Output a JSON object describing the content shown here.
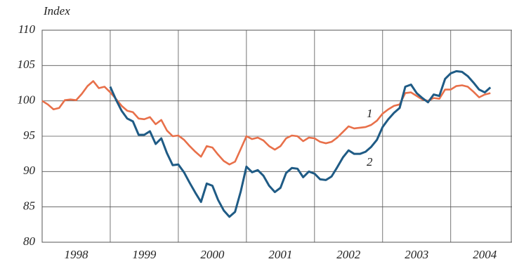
{
  "chart_data": {
    "type": "line",
    "y_label": "Index",
    "xlim": [
      1998,
      2004.9
    ],
    "ylim": [
      80,
      110
    ],
    "yticks": [
      80,
      85,
      90,
      95,
      100,
      105,
      110
    ],
    "xticks": [
      {
        "value": 1998.5,
        "label": "1998"
      },
      {
        "value": 1999.5,
        "label": "1999"
      },
      {
        "value": 2000.5,
        "label": "2000"
      },
      {
        "value": 2001.5,
        "label": "2001"
      },
      {
        "value": 2002.5,
        "label": "2002"
      },
      {
        "value": 2003.5,
        "label": "2003"
      },
      {
        "value": 2004.5,
        "label": "2004"
      }
    ],
    "xgrid": [
      1999,
      2000,
      2001,
      2002,
      2003,
      2004
    ],
    "grid": true,
    "series": [
      {
        "name": "1",
        "color": "#e8704a",
        "x": [
          1998,
          1998.083,
          1998.167,
          1998.25,
          1998.333,
          1998.417,
          1998.5,
          1998.583,
          1998.667,
          1998.75,
          1998.833,
          1998.917,
          1999,
          1999.083,
          1999.167,
          1999.25,
          1999.333,
          1999.417,
          1999.5,
          1999.583,
          1999.667,
          1999.75,
          1999.833,
          1999.917,
          2000,
          2000.083,
          2000.167,
          2000.25,
          2000.333,
          2000.417,
          2000.5,
          2000.583,
          2000.667,
          2000.75,
          2000.833,
          2000.917,
          2001,
          2001.083,
          2001.167,
          2001.25,
          2001.333,
          2001.417,
          2001.5,
          2001.583,
          2001.667,
          2001.75,
          2001.833,
          2001.917,
          2002,
          2002.083,
          2002.167,
          2002.25,
          2002.333,
          2002.417,
          2002.5,
          2002.583,
          2002.667,
          2002.75,
          2002.833,
          2002.917,
          2003,
          2003.083,
          2003.167,
          2003.25,
          2003.333,
          2003.417,
          2003.5,
          2003.583,
          2003.667,
          2003.75,
          2003.833,
          2003.917,
          2004,
          2004.083,
          2004.167,
          2004.25,
          2004.333,
          2004.417,
          2004.5,
          2004.583
        ],
        "values": [
          100,
          99.5,
          98.8,
          99,
          100.1,
          100.2,
          100.1,
          101,
          102.1,
          102.8,
          101.8,
          102,
          101.2,
          100.3,
          99.3,
          98.6,
          98.4,
          97.5,
          97.4,
          97.7,
          96.7,
          97.3,
          95.8,
          95,
          95.1,
          94.5,
          93.6,
          92.8,
          92.1,
          93.6,
          93.4,
          92.4,
          91.5,
          91,
          91.4,
          93.2,
          95,
          94.6,
          94.8,
          94.4,
          93.6,
          93.1,
          93.6,
          94.7,
          95.1,
          95,
          94.3,
          94.8,
          94.7,
          94.2,
          94,
          94.2,
          94.8,
          95.6,
          96.4,
          96.1,
          96.2,
          96.3,
          96.6,
          97.2,
          98.2,
          98.8,
          99.3,
          99.5,
          101.1,
          101.2,
          100.7,
          100.2,
          100,
          100.4,
          100.3,
          101.6,
          101.6,
          102.1,
          102.2,
          102,
          101.3,
          100.5,
          100.9,
          101.1
        ]
      },
      {
        "name": "2",
        "color": "#1f5b85",
        "x": [
          1999,
          1999.083,
          1999.167,
          1999.25,
          1999.333,
          1999.417,
          1999.5,
          1999.583,
          1999.667,
          1999.75,
          1999.833,
          1999.917,
          2000,
          2000.083,
          2000.167,
          2000.25,
          2000.333,
          2000.417,
          2000.5,
          2000.583,
          2000.667,
          2000.75,
          2000.833,
          2000.917,
          2001,
          2001.083,
          2001.167,
          2001.25,
          2001.333,
          2001.417,
          2001.5,
          2001.583,
          2001.667,
          2001.75,
          2001.833,
          2001.917,
          2002,
          2002.083,
          2002.167,
          2002.25,
          2002.333,
          2002.417,
          2002.5,
          2002.583,
          2002.667,
          2002.75,
          2002.833,
          2002.917,
          2003,
          2003.083,
          2003.167,
          2003.25,
          2003.333,
          2003.417,
          2003.5,
          2003.583,
          2003.667,
          2003.75,
          2003.833,
          2003.917,
          2004,
          2004.083,
          2004.167,
          2004.25,
          2004.333,
          2004.417,
          2004.5,
          2004.583
        ],
        "values": [
          102,
          100.2,
          98.6,
          97.5,
          97.1,
          95.2,
          95.2,
          95.7,
          93.9,
          94.7,
          92.6,
          90.9,
          91,
          89.9,
          88.4,
          87,
          85.7,
          88.3,
          88,
          86,
          84.5,
          83.6,
          84.3,
          87.2,
          90.7,
          89.9,
          90.2,
          89.4,
          88,
          87.1,
          87.7,
          89.8,
          90.5,
          90.4,
          89.2,
          90,
          89.7,
          88.9,
          88.8,
          89.3,
          90.6,
          92,
          93,
          92.5,
          92.5,
          92.8,
          93.5,
          94.5,
          96.3,
          97.4,
          98.3,
          99,
          102,
          102.3,
          101.1,
          100.4,
          99.8,
          100.9,
          100.7,
          103.1,
          103.9,
          104.2,
          104.1,
          103.5,
          102.6,
          101.6,
          101.2,
          101.9
        ]
      }
    ]
  }
}
